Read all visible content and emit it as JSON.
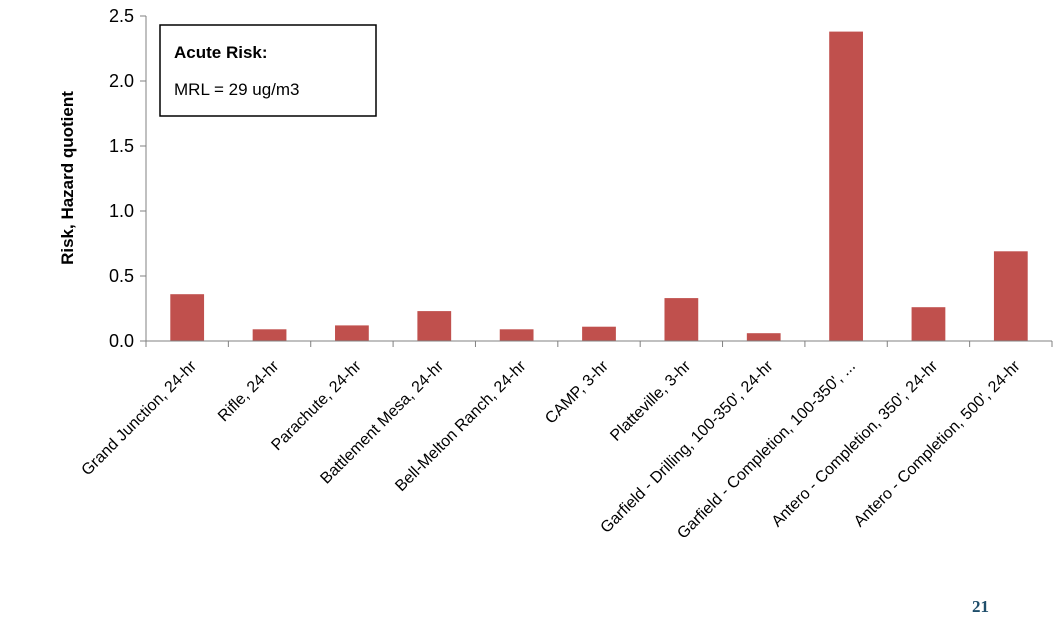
{
  "chart_data": {
    "type": "bar",
    "title": "",
    "xlabel": "",
    "ylabel": "Risk, Hazard quotient",
    "ylim": [
      0,
      2.5
    ],
    "yticks": [
      0.0,
      0.5,
      1.0,
      1.5,
      2.0,
      2.5
    ],
    "ytick_labels": [
      "0.0",
      "0.5",
      "1.0",
      "1.5",
      "2.0",
      "2.5"
    ],
    "grid": false,
    "bar_color": "#c0504d",
    "categories": [
      "Grand Junction, 24-hr",
      "Rifle, 24-hr",
      "Parachute, 24-hr",
      "Battlement Mesa, 24-hr",
      "Bell-Melton Ranch, 24-hr",
      "CAMP, 3-hr",
      "Platteville, 3-hr",
      "Garfield - Drilling, 100-350', 24-hr",
      "Garfield - Completion, 100-350', ...",
      "Antero - Completion, 350', 24-hr",
      "Antero - Completion, 500', 24-hr"
    ],
    "values": [
      0.36,
      0.09,
      0.12,
      0.23,
      0.09,
      0.11,
      0.33,
      0.06,
      2.38,
      0.26,
      0.69
    ],
    "annotation": {
      "title": "Acute Risk:",
      "text": "MRL = 29 ug/m3"
    }
  },
  "page_number": "21"
}
